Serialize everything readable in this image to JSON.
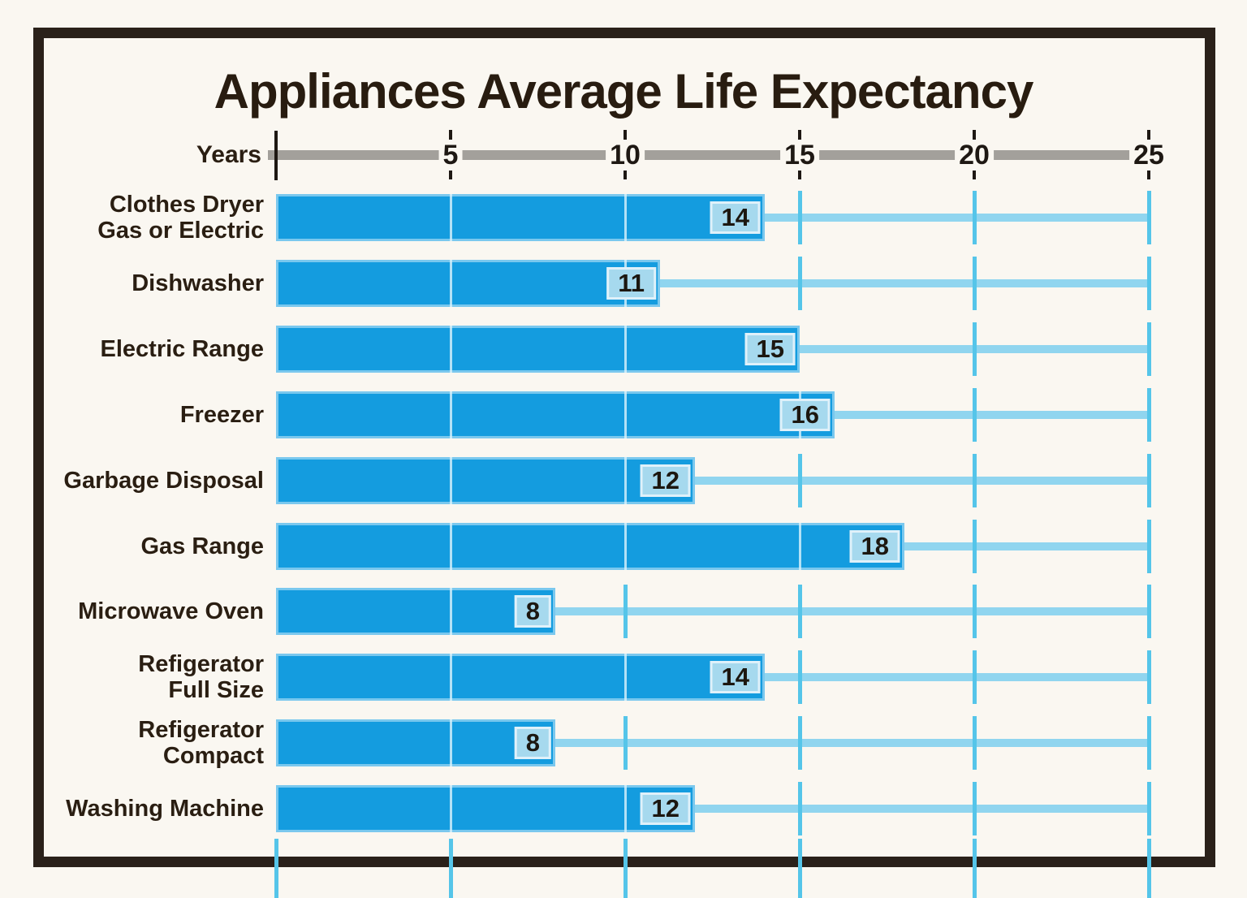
{
  "chart_data": {
    "type": "bar",
    "orientation": "horizontal",
    "title": "Appliances Average Life Expectancy",
    "xlabel": "Years",
    "xlim": [
      0,
      25
    ],
    "xticks": [
      5,
      10,
      15,
      20,
      25
    ],
    "tick_interval": 5,
    "grid": true,
    "value_labels_shown": true,
    "categories": [
      "Clothes Dryer Gas or Electric",
      "Dishwasher",
      "Electric Range",
      "Freezer",
      "Garbage Disposal",
      "Gas Range",
      "Microwave Oven",
      "Refigerator Full Size",
      "Refigerator Compact",
      "Washing Machine"
    ],
    "values": [
      14,
      11,
      15,
      16,
      12,
      18,
      8,
      14,
      8,
      12
    ],
    "rows": [
      {
        "label_lines": [
          "Clothes Dryer",
          "Gas or Electric"
        ],
        "value": 14
      },
      {
        "label_lines": [
          "Dishwasher"
        ],
        "value": 11
      },
      {
        "label_lines": [
          "Electric Range"
        ],
        "value": 15
      },
      {
        "label_lines": [
          "Freezer"
        ],
        "value": 16
      },
      {
        "label_lines": [
          "Garbage Disposal"
        ],
        "value": 12
      },
      {
        "label_lines": [
          "Gas Range"
        ],
        "value": 18
      },
      {
        "label_lines": [
          "Microwave Oven"
        ],
        "value": 8
      },
      {
        "label_lines": [
          "Refigerator",
          "Full Size"
        ],
        "value": 14
      },
      {
        "label_lines": [
          "Refigerator",
          "Compact"
        ],
        "value": 8
      },
      {
        "label_lines": [
          "Washing Machine"
        ],
        "value": 12
      }
    ]
  },
  "colors": {
    "bg": "#FAF7F1",
    "frame": "#2A211A",
    "title": "#281C10",
    "text": "#2A1E12",
    "bar": "#149CDF",
    "chipbg": "#A6D9EE",
    "chipborder": "#DFF1FA",
    "chiptext": "#1C1710",
    "extline": "#90D5EF",
    "tick": "#55C5E9",
    "inbar": "#DBF2FB",
    "axis": "#A3A09B",
    "axistick": "#1E1813"
  }
}
